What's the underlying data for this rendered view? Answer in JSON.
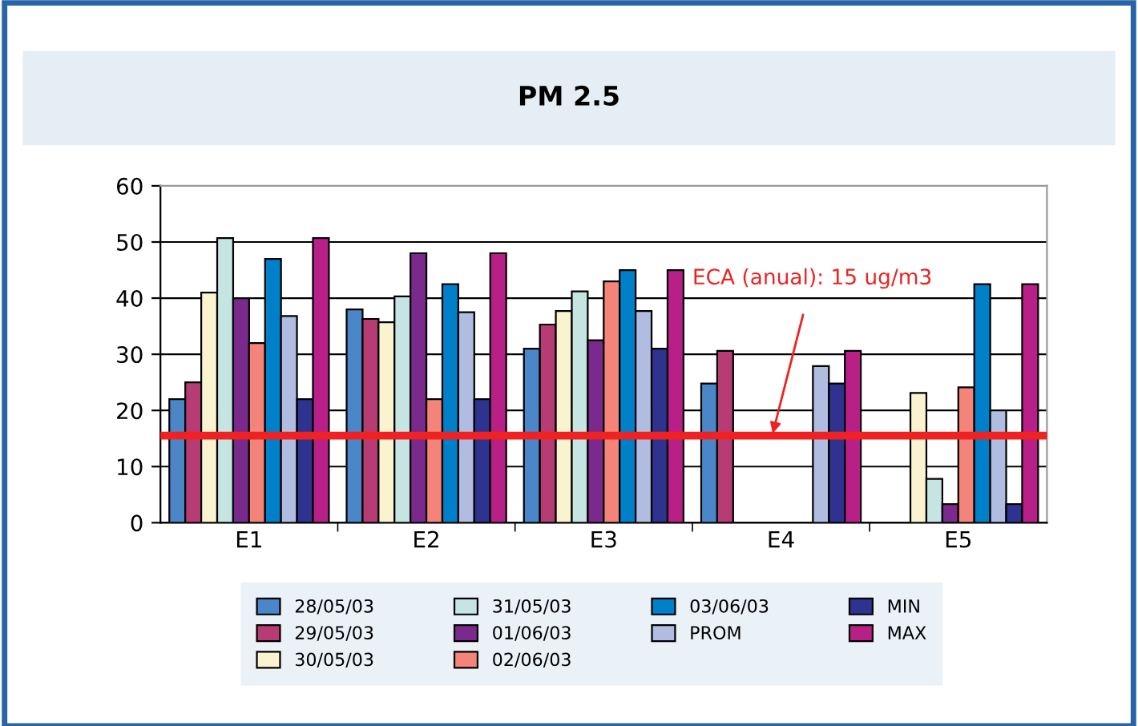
{
  "chart_data": {
    "type": "bar",
    "title": "PM 2.5",
    "categories": [
      "E1",
      "E2",
      "E3",
      "E4",
      "E5"
    ],
    "series": [
      {
        "name": "28/05/03",
        "color": "#4a86c8",
        "values": [
          22,
          38,
          31,
          24.8,
          null
        ]
      },
      {
        "name": "29/05/03",
        "color": "#b83c74",
        "values": [
          25,
          36.3,
          35.3,
          30.6,
          null
        ]
      },
      {
        "name": "30/05/03",
        "color": "#faf3cf",
        "values": [
          41,
          35.7,
          37.7,
          null,
          23.1
        ]
      },
      {
        "name": "31/05/03",
        "color": "#c5e4e2",
        "values": [
          50.7,
          40.3,
          41.2,
          null,
          7.8
        ]
      },
      {
        "name": "01/06/03",
        "color": "#7a2a8c",
        "values": [
          40,
          48,
          32.5,
          null,
          3.3
        ]
      },
      {
        "name": "02/06/03",
        "color": "#f4837a",
        "values": [
          32,
          22,
          43,
          null,
          24.1
        ]
      },
      {
        "name": "03/06/03",
        "color": "#0080c8",
        "values": [
          47,
          42.5,
          45,
          null,
          42.5
        ]
      },
      {
        "name": "PROM",
        "color": "#b0bce0",
        "values": [
          36.8,
          37.5,
          37.7,
          27.9,
          20
        ]
      },
      {
        "name": "MIN",
        "color": "#2e3390",
        "values": [
          22,
          22,
          31,
          24.8,
          3.3
        ]
      },
      {
        "name": "MAX",
        "color": "#b82088",
        "values": [
          50.7,
          48,
          45,
          30.6,
          42.5
        ]
      }
    ],
    "ylim": [
      0,
      60
    ],
    "yticks": [
      0,
      10,
      20,
      30,
      40,
      50,
      60
    ],
    "grid": "y",
    "legend": "bottom",
    "ref_lines": [
      {
        "axis": "y",
        "value": 15.5,
        "color": "#ee2222",
        "label": "ECA (anual): 15 ug/m3"
      }
    ]
  }
}
